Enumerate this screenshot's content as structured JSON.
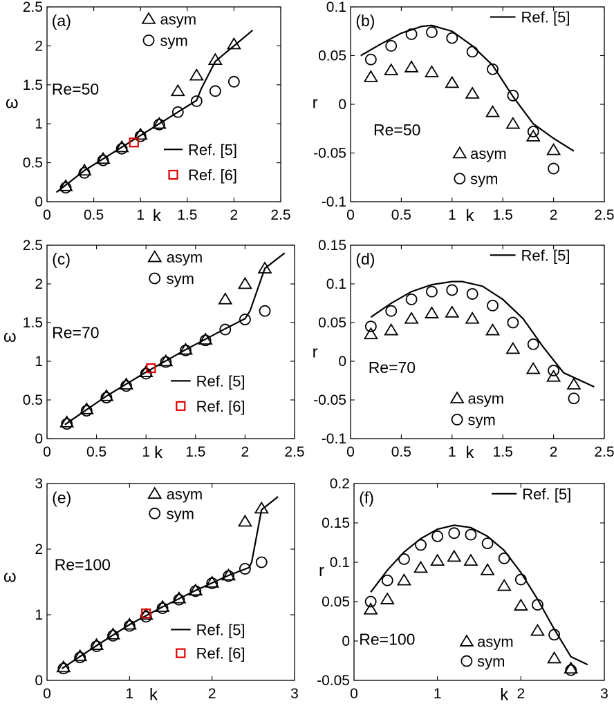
{
  "chart_data": [
    {
      "id": "a",
      "type": "line+scatter",
      "panel_label": "(a)",
      "annotation": "Re=50",
      "xlabel": "k",
      "ylabel": "ω",
      "xlim": [
        0,
        2.5
      ],
      "ylim": [
        0,
        2.5
      ],
      "xticks": [
        0,
        0.5,
        1,
        1.5,
        2,
        2.5
      ],
      "xtick_labels": [
        "0",
        "0.5",
        "1",
        "1.5",
        "2",
        "2.5"
      ],
      "yticks": [
        0,
        0.5,
        1,
        1.5,
        2,
        2.5
      ],
      "ytick_labels": [
        "0",
        "0.5",
        "1",
        "1.5",
        "2",
        "2.5"
      ],
      "legends": [
        {
          "position": "top",
          "entries": [
            {
              "marker": "triangle",
              "label": "asym"
            },
            {
              "marker": "circle",
              "label": "sym"
            }
          ]
        },
        {
          "position": "bottom-right",
          "entries": [
            {
              "marker": "line",
              "label": "Ref. [5]"
            },
            {
              "marker": "square",
              "label": "Ref. [6]"
            }
          ]
        }
      ],
      "series": [
        {
          "name": "asym",
          "marker": "triangle",
          "x": [
            0.2,
            0.4,
            0.6,
            0.8,
            1.0,
            1.2,
            1.4,
            1.6,
            1.8,
            2.0
          ],
          "y": [
            0.2,
            0.4,
            0.55,
            0.7,
            0.86,
            1.0,
            1.42,
            1.62,
            1.82,
            2.02
          ]
        },
        {
          "name": "sym",
          "marker": "circle",
          "x": [
            0.2,
            0.4,
            0.6,
            0.8,
            1.0,
            1.2,
            1.4,
            1.6,
            1.8,
            2.0
          ],
          "y": [
            0.18,
            0.37,
            0.53,
            0.68,
            0.84,
            0.99,
            1.15,
            1.29,
            1.42,
            1.54
          ]
        },
        {
          "name": "Ref. [5]",
          "marker": "line",
          "x": [
            0.1,
            0.4,
            0.8,
            1.2,
            1.6,
            1.65,
            1.8,
            2.0,
            2.2
          ],
          "y": [
            0.12,
            0.4,
            0.7,
            1.0,
            1.3,
            1.45,
            1.8,
            2.0,
            2.2
          ]
        },
        {
          "name": "Ref. [6]",
          "marker": "square",
          "x": [
            0.93
          ],
          "y": [
            0.76
          ]
        }
      ]
    },
    {
      "id": "b",
      "type": "line+scatter",
      "panel_label": "(b)",
      "annotation": "Re=50",
      "xlabel": "k",
      "ylabel": "r",
      "xlim": [
        0,
        2.5
      ],
      "ylim": [
        -0.1,
        0.1
      ],
      "xticks": [
        0,
        0.5,
        1,
        1.5,
        2,
        2.5
      ],
      "xtick_labels": [
        "0",
        "0.5",
        "1",
        "1.5",
        "2",
        "2.5"
      ],
      "yticks": [
        -0.1,
        -0.05,
        0,
        0.05,
        0.1
      ],
      "ytick_labels": [
        "-0.1",
        "-0.05",
        "0",
        "0.05",
        "0.1"
      ],
      "legends": [
        {
          "position": "top-right",
          "entries": [
            {
              "marker": "line",
              "label": "Ref. [5]"
            }
          ]
        },
        {
          "position": "bottom-right",
          "entries": [
            {
              "marker": "triangle",
              "label": "asym"
            },
            {
              "marker": "circle",
              "label": "sym"
            }
          ]
        }
      ],
      "series": [
        {
          "name": "asym",
          "marker": "triangle",
          "x": [
            0.2,
            0.4,
            0.6,
            0.8,
            1.0,
            1.2,
            1.4,
            1.6,
            1.8,
            2.0
          ],
          "y": [
            0.028,
            0.035,
            0.038,
            0.033,
            0.022,
            0.011,
            -0.008,
            -0.02,
            -0.033,
            -0.047
          ]
        },
        {
          "name": "sym",
          "marker": "circle",
          "x": [
            0.2,
            0.4,
            0.6,
            0.8,
            1.0,
            1.2,
            1.4,
            1.6,
            1.8,
            2.0
          ],
          "y": [
            0.046,
            0.06,
            0.072,
            0.074,
            0.068,
            0.054,
            0.036,
            0.009,
            -0.028,
            -0.066
          ]
        },
        {
          "name": "Ref. [5]",
          "marker": "line",
          "x": [
            0.1,
            0.3,
            0.5,
            0.7,
            0.8,
            1.0,
            1.2,
            1.4,
            1.6,
            1.8,
            2.0,
            2.2
          ],
          "y": [
            0.05,
            0.062,
            0.073,
            0.08,
            0.081,
            0.075,
            0.06,
            0.04,
            0.008,
            -0.02,
            -0.035,
            -0.048
          ]
        }
      ]
    },
    {
      "id": "c",
      "type": "line+scatter",
      "panel_label": "(c)",
      "annotation": "Re=70",
      "xlabel": "k",
      "ylabel": "ω",
      "xlim": [
        0,
        2.5
      ],
      "ylim": [
        0,
        2.5
      ],
      "xticks": [
        0,
        0.5,
        1,
        1.5,
        2,
        2.5
      ],
      "xtick_labels": [
        "0",
        "0.5",
        "1",
        "1.5",
        "2",
        "2.5"
      ],
      "yticks": [
        0,
        0.5,
        1,
        1.5,
        2,
        2.5
      ],
      "ytick_labels": [
        "0",
        "0.5",
        "1",
        "1.5",
        "2",
        "2.5"
      ],
      "legends": [
        {
          "position": "top",
          "entries": [
            {
              "marker": "triangle",
              "label": "asym"
            },
            {
              "marker": "circle",
              "label": "sym"
            }
          ]
        },
        {
          "position": "bottom-right",
          "entries": [
            {
              "marker": "line",
              "label": "Ref. [5]"
            },
            {
              "marker": "square",
              "label": "Ref. [6]"
            }
          ]
        }
      ],
      "series": [
        {
          "name": "asym",
          "marker": "triangle",
          "x": [
            0.2,
            0.4,
            0.6,
            0.8,
            1.0,
            1.2,
            1.4,
            1.6,
            1.8,
            2.0,
            2.2
          ],
          "y": [
            0.21,
            0.38,
            0.55,
            0.7,
            0.86,
            1.0,
            1.15,
            1.28,
            1.8,
            2.0,
            2.2
          ]
        },
        {
          "name": "sym",
          "marker": "circle",
          "x": [
            0.2,
            0.4,
            0.6,
            0.8,
            1.0,
            1.2,
            1.4,
            1.6,
            1.8,
            2.0,
            2.2
          ],
          "y": [
            0.19,
            0.36,
            0.53,
            0.68,
            0.84,
            0.99,
            1.14,
            1.27,
            1.41,
            1.54,
            1.65
          ]
        },
        {
          "name": "Ref. [5]",
          "marker": "line",
          "x": [
            0.18,
            0.6,
            1.0,
            1.4,
            1.8,
            2.0,
            2.05,
            2.2,
            2.4
          ],
          "y": [
            0.18,
            0.55,
            0.86,
            1.15,
            1.42,
            1.55,
            1.65,
            2.2,
            2.4
          ]
        },
        {
          "name": "Ref. [6]",
          "marker": "square",
          "x": [
            1.05
          ],
          "y": [
            0.91
          ]
        }
      ]
    },
    {
      "id": "d",
      "type": "line+scatter",
      "panel_label": "(d)",
      "annotation": "Re=70",
      "xlabel": "k",
      "ylabel": "r",
      "xlim": [
        0,
        2.5
      ],
      "ylim": [
        -0.1,
        0.15
      ],
      "xticks": [
        0,
        0.5,
        1,
        1.5,
        2,
        2.5
      ],
      "xtick_labels": [
        "0",
        "0.5",
        "1",
        "1.5",
        "2",
        "2.5"
      ],
      "yticks": [
        -0.1,
        -0.05,
        0,
        0.05,
        0.1,
        0.15
      ],
      "ytick_labels": [
        "-0.1",
        "-0.05",
        "0",
        "0.05",
        "0.1",
        "0.15"
      ],
      "legends": [
        {
          "position": "top-right",
          "entries": [
            {
              "marker": "line",
              "label": "Ref. [5]"
            }
          ]
        },
        {
          "position": "bottom-right",
          "entries": [
            {
              "marker": "triangle",
              "label": "asym"
            },
            {
              "marker": "circle",
              "label": "sym"
            }
          ]
        }
      ],
      "series": [
        {
          "name": "asym",
          "marker": "triangle",
          "x": [
            0.2,
            0.4,
            0.6,
            0.8,
            1.0,
            1.2,
            1.4,
            1.6,
            1.8,
            2.0,
            2.2
          ],
          "y": [
            0.035,
            0.04,
            0.055,
            0.062,
            0.063,
            0.055,
            0.04,
            0.016,
            -0.01,
            -0.02,
            -0.03
          ]
        },
        {
          "name": "sym",
          "marker": "circle",
          "x": [
            0.2,
            0.4,
            0.6,
            0.8,
            1.0,
            1.2,
            1.4,
            1.6,
            1.8,
            2.0,
            2.2
          ],
          "y": [
            0.045,
            0.065,
            0.08,
            0.09,
            0.092,
            0.087,
            0.072,
            0.05,
            0.022,
            -0.012,
            -0.048
          ]
        },
        {
          "name": "Ref. [5]",
          "marker": "line",
          "x": [
            0.2,
            0.4,
            0.6,
            0.8,
            1.0,
            1.1,
            1.3,
            1.5,
            1.7,
            1.9,
            2.1,
            2.4
          ],
          "y": [
            0.057,
            0.075,
            0.09,
            0.099,
            0.103,
            0.103,
            0.097,
            0.08,
            0.055,
            0.018,
            -0.015,
            -0.033
          ]
        }
      ]
    },
    {
      "id": "e",
      "type": "line+scatter",
      "panel_label": "(e)",
      "annotation": "Re=100",
      "xlabel": "k",
      "ylabel": "ω",
      "xlim": [
        0,
        3
      ],
      "ylim": [
        0,
        3
      ],
      "xticks": [
        0,
        1,
        2,
        3
      ],
      "xtick_labels": [
        "0",
        "1",
        "2",
        "3"
      ],
      "yticks": [
        0,
        1,
        2,
        3
      ],
      "ytick_labels": [
        "0",
        "1",
        "2",
        "3"
      ],
      "legends": [
        {
          "position": "top",
          "entries": [
            {
              "marker": "triangle",
              "label": "asym"
            },
            {
              "marker": "circle",
              "label": "sym"
            }
          ]
        },
        {
          "position": "bottom-right",
          "entries": [
            {
              "marker": "line",
              "label": "Ref. [5]"
            },
            {
              "marker": "square",
              "label": "Ref. [6]"
            }
          ]
        }
      ],
      "series": [
        {
          "name": "asym",
          "marker": "triangle",
          "x": [
            0.2,
            0.4,
            0.6,
            0.8,
            1.0,
            1.2,
            1.4,
            1.6,
            1.8,
            2.0,
            2.2,
            2.4,
            2.6
          ],
          "y": [
            0.2,
            0.37,
            0.54,
            0.7,
            0.85,
            1.0,
            1.12,
            1.25,
            1.37,
            1.49,
            1.6,
            2.42,
            2.62
          ]
        },
        {
          "name": "sym",
          "marker": "circle",
          "x": [
            0.2,
            0.4,
            0.6,
            0.8,
            1.0,
            1.2,
            1.4,
            1.6,
            1.8,
            2.0,
            2.2,
            2.4,
            2.6
          ],
          "y": [
            0.18,
            0.35,
            0.52,
            0.68,
            0.83,
            0.97,
            1.1,
            1.23,
            1.36,
            1.48,
            1.59,
            1.7,
            1.8
          ]
        },
        {
          "name": "Ref. [5]",
          "marker": "line",
          "x": [
            0.18,
            0.6,
            1.0,
            1.4,
            1.8,
            2.2,
            2.45,
            2.48,
            2.6,
            2.8
          ],
          "y": [
            0.18,
            0.53,
            0.85,
            1.12,
            1.37,
            1.6,
            1.72,
            1.8,
            2.6,
            2.8
          ]
        },
        {
          "name": "Ref. [6]",
          "marker": "square",
          "x": [
            1.2
          ],
          "y": [
            1.02
          ]
        }
      ]
    },
    {
      "id": "f",
      "type": "line+scatter",
      "panel_label": "(f)",
      "annotation": "Re=100",
      "xlabel": "k",
      "ylabel": "r",
      "xlim": [
        0,
        3
      ],
      "ylim": [
        -0.05,
        0.2
      ],
      "xticks": [
        0,
        1,
        2,
        3
      ],
      "xtick_labels": [
        "0",
        "1",
        "2",
        "3"
      ],
      "yticks": [
        -0.05,
        0,
        0.05,
        0.1,
        0.15,
        0.2
      ],
      "ytick_labels": [
        "-0.05",
        "0",
        "0.05",
        "0.1",
        "0.15",
        "0.2"
      ],
      "legends": [
        {
          "position": "top-right",
          "entries": [
            {
              "marker": "line",
              "label": "Ref. [5]"
            }
          ]
        },
        {
          "position": "bottom-right",
          "entries": [
            {
              "marker": "triangle",
              "label": "asym"
            },
            {
              "marker": "circle",
              "label": "sym"
            }
          ]
        }
      ],
      "series": [
        {
          "name": "asym",
          "marker": "triangle",
          "x": [
            0.2,
            0.4,
            0.6,
            0.8,
            1.0,
            1.2,
            1.4,
            1.6,
            1.8,
            2.0,
            2.2,
            2.4,
            2.6
          ],
          "y": [
            0.04,
            0.053,
            0.077,
            0.093,
            0.102,
            0.107,
            0.102,
            0.09,
            0.07,
            0.045,
            0.013,
            -0.022,
            -0.035
          ]
        },
        {
          "name": "sym",
          "marker": "circle",
          "x": [
            0.2,
            0.4,
            0.6,
            0.8,
            1.0,
            1.2,
            1.4,
            1.6,
            1.8,
            2.0,
            2.2,
            2.4,
            2.6
          ],
          "y": [
            0.05,
            0.077,
            0.104,
            0.122,
            0.133,
            0.137,
            0.135,
            0.124,
            0.105,
            0.078,
            0.046,
            0.008,
            -0.037
          ]
        },
        {
          "name": "Ref. [5]",
          "marker": "line",
          "x": [
            0.2,
            0.4,
            0.6,
            0.8,
            1.0,
            1.2,
            1.4,
            1.6,
            1.8,
            2.0,
            2.2,
            2.4,
            2.6,
            2.8
          ],
          "y": [
            0.062,
            0.09,
            0.113,
            0.13,
            0.142,
            0.147,
            0.144,
            0.133,
            0.115,
            0.087,
            0.053,
            0.015,
            -0.02,
            -0.03
          ]
        }
      ]
    }
  ]
}
